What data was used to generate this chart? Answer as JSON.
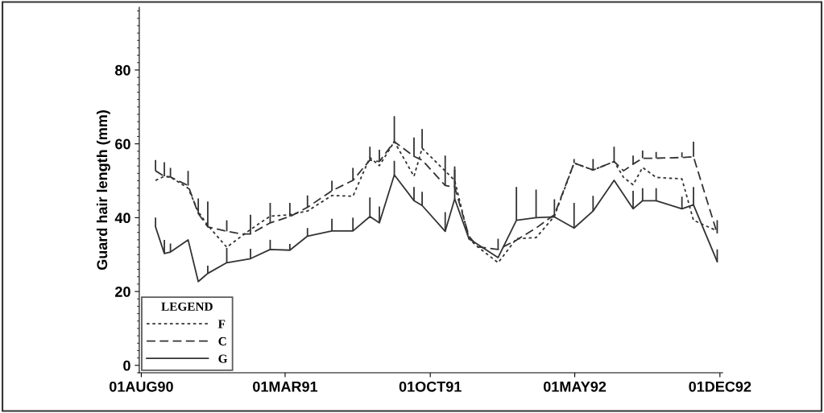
{
  "chart_data": {
    "type": "line",
    "ylabel": "Guard hair length (mm)",
    "legend_title": "LEGEND",
    "legend": "bottom left",
    "grid": false,
    "marker": "none",
    "xlim": [
      "1990-07-29",
      "1992-12-05"
    ],
    "ylim": [
      -2,
      97
    ],
    "xticks": [
      {
        "value": "1990-08-01",
        "label": "01AUG90"
      },
      {
        "value": "1991-03-01",
        "label": "01MAR91"
      },
      {
        "value": "1991-10-01",
        "label": "01OCT91"
      },
      {
        "value": "1992-05-01",
        "label": "01MAY92"
      },
      {
        "value": "1992-12-01",
        "label": "01DEC92"
      }
    ],
    "yticks": [
      0,
      20,
      40,
      60,
      80
    ],
    "series": [
      {
        "name": "F",
        "color": "#333333",
        "line_style": "dotted",
        "x": [
          "1990-08-22",
          "1990-09-04",
          "1990-09-13",
          "1990-10-09",
          "1990-10-24",
          "1990-11-07",
          "1990-12-05",
          "1991-01-09",
          "1991-02-07",
          "1991-03-08",
          "1991-04-03",
          "1991-05-09",
          "1991-06-09",
          "1991-07-04",
          "1991-07-18",
          "1991-08-09",
          "1991-09-07",
          "1991-09-19",
          "1991-11-06",
          "1991-11-27",
          "1991-12-10",
          "1992-01-09",
          "1992-02-05",
          "1992-03-05",
          "1992-04-01",
          "1992-04-30",
          "1992-05-28",
          "1992-06-28",
          "1992-07-12",
          "1992-07-26",
          "1992-08-09",
          "1992-08-29",
          "1992-10-06",
          "1992-10-23",
          "1992-11-27"
        ],
        "values": [
          50.1,
          51.2,
          51,
          48,
          41.6,
          37.9,
          32,
          36.8,
          40.4,
          40.8,
          41.8,
          46,
          45.8,
          56.3,
          54.1,
          60.6,
          51.2,
          58.8,
          50.1,
          34.3,
          32.1,
          27.8,
          34.3,
          34.6,
          40.4,
          54.8,
          52.9,
          55.2,
          50.9,
          48.9,
          53.6,
          50.9,
          50.5,
          39.3,
          36.4
        ],
        "errors": [
          null,
          null,
          null,
          null,
          null,
          null,
          null,
          null,
          null,
          null,
          null,
          null,
          null,
          null,
          null,
          null,
          null,
          [
            58.8,
            64
          ],
          null,
          null,
          null,
          null,
          null,
          null,
          null,
          null,
          null,
          null,
          null,
          null,
          null,
          null,
          null,
          null,
          null
        ]
      },
      {
        "name": "C",
        "color": "#333333",
        "line_style": "dashed",
        "x": [
          "1990-08-22",
          "1990-09-04",
          "1990-09-13",
          "1990-10-09",
          "1990-10-24",
          "1990-11-07",
          "1990-12-05",
          "1990-12-27",
          "1991-01-09",
          "1991-02-07",
          "1991-03-08",
          "1991-04-03",
          "1991-05-09",
          "1991-06-09",
          "1991-07-04",
          "1991-07-18",
          "1991-08-09",
          "1991-09-07",
          "1991-09-19",
          "1991-10-23",
          "1991-11-06",
          "1991-11-27",
          "1991-12-10",
          "1992-01-09",
          "1992-02-05",
          "1992-03-05",
          "1992-04-01",
          "1992-04-30",
          "1992-05-28",
          "1992-06-28",
          "1992-07-12",
          "1992-07-26",
          "1992-08-09",
          "1992-08-29",
          "1992-10-06",
          "1992-10-23",
          "1992-11-27"
        ],
        "values": [
          52.7,
          51.2,
          51,
          48.7,
          41.1,
          37.5,
          36.3,
          35.6,
          35.6,
          38.6,
          40.3,
          42.8,
          47.3,
          50.1,
          55.6,
          55.2,
          60.6,
          56.6,
          55.6,
          48.7,
          48.3,
          35,
          32.1,
          31.4,
          33.9,
          37.2,
          40.8,
          54.8,
          52.9,
          55.2,
          52.7,
          54.5,
          56.1,
          56.1,
          56.3,
          56.5,
          35.7
        ],
        "errors": [
          [
            52.7,
            55.6
          ],
          [
            51.2,
            55
          ],
          [
            51,
            53.5
          ],
          [
            48.7,
            52.7
          ],
          [
            41.1,
            45.2
          ],
          [
            37.5,
            44.4
          ],
          [
            36.3,
            39.3
          ],
          null,
          [
            35.6,
            40.8
          ],
          [
            38.6,
            44
          ],
          [
            40.3,
            44
          ],
          [
            42.8,
            46
          ],
          [
            47.3,
            50
          ],
          [
            50.1,
            53.5
          ],
          [
            55.6,
            59.2
          ],
          [
            55.2,
            58.4
          ],
          [
            60.6,
            67.5
          ],
          [
            56.6,
            61.7
          ],
          null,
          [
            48.7,
            56.8
          ],
          [
            48.3,
            53.9
          ],
          null,
          null,
          [
            31.4,
            34.3
          ],
          null,
          null,
          null,
          [
            54.8,
            55.9
          ],
          [
            52.9,
            55.9
          ],
          [
            55.2,
            59.2
          ],
          null,
          [
            54.5,
            56.8
          ],
          [
            56.1,
            58.2
          ],
          [
            56.1,
            57.8
          ],
          [
            56.3,
            57.7
          ],
          [
            56.5,
            60.6
          ],
          [
            35.7,
            39.3
          ]
        ]
      },
      {
        "name": "G",
        "color": "#333333",
        "line_style": "solid",
        "x": [
          "1990-08-22",
          "1990-09-04",
          "1990-09-13",
          "1990-10-09",
          "1990-10-24",
          "1990-11-07",
          "1990-12-05",
          "1991-01-09",
          "1991-02-07",
          "1991-03-08",
          "1991-04-03",
          "1991-05-09",
          "1991-06-09",
          "1991-07-04",
          "1991-07-18",
          "1991-08-09",
          "1991-09-07",
          "1991-09-19",
          "1991-10-23",
          "1991-11-06",
          "1991-11-27",
          "1992-01-09",
          "1992-02-05",
          "1992-03-05",
          "1992-04-01",
          "1992-04-30",
          "1992-05-28",
          "1992-06-28",
          "1992-07-26",
          "1992-08-09",
          "1992-08-29",
          "1992-10-06",
          "1992-10-23",
          "1992-11-27"
        ],
        "values": [
          37.5,
          30.3,
          30.7,
          34,
          22.7,
          24.9,
          27.8,
          28.9,
          31.4,
          31.2,
          35,
          36.4,
          36.4,
          40.3,
          38.6,
          51.6,
          44.6,
          43.3,
          36.3,
          45.1,
          34.3,
          29.2,
          39.3,
          40,
          40.2,
          37.2,
          41.8,
          50.1,
          42.4,
          44.6,
          44.6,
          42.4,
          43.5,
          28.1
        ],
        "errors": [
          [
            37.5,
            40
          ],
          [
            30.3,
            34
          ],
          [
            30.7,
            33
          ],
          null,
          null,
          [
            24.9,
            27
          ],
          [
            27.8,
            31.8
          ],
          [
            28.9,
            31.6
          ],
          [
            31.4,
            34
          ],
          [
            31.2,
            32.9
          ],
          [
            35,
            37.2
          ],
          [
            36.4,
            39.7
          ],
          [
            36.4,
            40
          ],
          [
            40.3,
            45.5
          ],
          [
            38.6,
            43
          ],
          [
            51.6,
            55.4
          ],
          [
            44.6,
            48.3
          ],
          [
            43.3,
            47
          ],
          [
            36.3,
            41.5
          ],
          [
            45.1,
            53
          ],
          null,
          null,
          [
            39.3,
            48.3
          ],
          [
            40,
            47.6
          ],
          [
            40.2,
            45
          ],
          [
            37.2,
            44
          ],
          [
            41.8,
            45.9
          ],
          null,
          [
            42.4,
            47.3
          ],
          [
            44.6,
            48
          ],
          [
            44.6,
            48
          ],
          [
            42.4,
            45.7
          ],
          [
            43.5,
            48.3
          ],
          [
            28.1,
            31.4
          ]
        ]
      }
    ]
  }
}
